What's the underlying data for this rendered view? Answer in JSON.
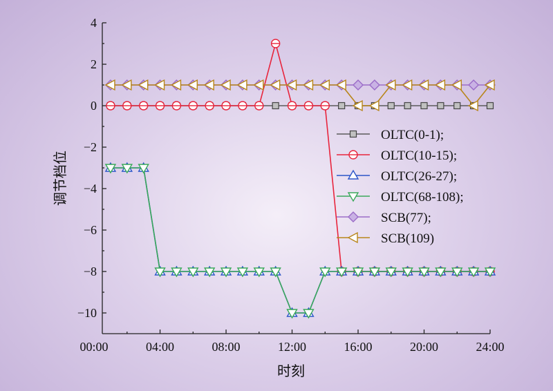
{
  "chart_data": {
    "type": "line",
    "xlabel": "时刻",
    "ylabel": "调节档位",
    "xlim": [
      0.5,
      24
    ],
    "ylim": [
      -11,
      4
    ],
    "x_ticks": [
      {
        "value": 0,
        "label": "00:00"
      },
      {
        "value": 4,
        "label": "04:00"
      },
      {
        "value": 8,
        "label": "08:00"
      },
      {
        "value": 12,
        "label": "12:00"
      },
      {
        "value": 16,
        "label": "16:00"
      },
      {
        "value": 20,
        "label": "20:00"
      },
      {
        "value": 24,
        "label": "24:00"
      }
    ],
    "y_ticks": [
      {
        "value": 4,
        "label": "4"
      },
      {
        "value": 2,
        "label": "2"
      },
      {
        "value": 0,
        "label": "0"
      },
      {
        "value": -2,
        "label": "−2"
      },
      {
        "value": -4,
        "label": "−4"
      },
      {
        "value": -6,
        "label": "−6"
      },
      {
        "value": -8,
        "label": "−8"
      },
      {
        "value": -10,
        "label": "−10"
      }
    ],
    "x": [
      1,
      2,
      3,
      4,
      5,
      6,
      7,
      8,
      9,
      10,
      11,
      12,
      13,
      14,
      15,
      16,
      17,
      18,
      19,
      20,
      21,
      22,
      23,
      24
    ],
    "legend_position": "right",
    "series": [
      {
        "name": "OLTC(0-1);",
        "color": "#5a5a5a",
        "marker": "square",
        "values": [
          0,
          0,
          0,
          0,
          0,
          0,
          0,
          0,
          0,
          0,
          0,
          0,
          0,
          0,
          0,
          0,
          0,
          0,
          0,
          0,
          0,
          0,
          0,
          0
        ]
      },
      {
        "name": "OLTC(10-15);",
        "color": "#e8243c",
        "marker": "circle",
        "values": [
          0,
          0,
          0,
          0,
          0,
          0,
          0,
          0,
          0,
          0,
          3,
          0,
          0,
          0,
          -8,
          -8,
          -8,
          -8,
          -8,
          -8,
          -8,
          -8,
          -8,
          -8
        ]
      },
      {
        "name": "OLTC(26-27);",
        "color": "#2b55c8",
        "marker": "triangle-up",
        "values": [
          -3,
          -3,
          -3,
          -8,
          -8,
          -8,
          -8,
          -8,
          -8,
          -8,
          -8,
          -10,
          -10,
          -8,
          -8,
          -8,
          -8,
          -8,
          -8,
          -8,
          -8,
          -8,
          -8,
          -8
        ]
      },
      {
        "name": "OLTC(68-108);",
        "color": "#3aa85a",
        "marker": "triangle-down",
        "values": [
          -3,
          -3,
          -3,
          -8,
          -8,
          -8,
          -8,
          -8,
          -8,
          -8,
          -8,
          -10,
          -10,
          -8,
          -8,
          -8,
          -8,
          -8,
          -8,
          -8,
          -8,
          -8,
          -8,
          -8
        ]
      },
      {
        "name": "SCB(77);",
        "color": "#9b6cc8",
        "marker": "diamond",
        "values": [
          1,
          1,
          1,
          1,
          1,
          1,
          1,
          1,
          1,
          1,
          1,
          1,
          1,
          1,
          1,
          1,
          1,
          1,
          1,
          1,
          1,
          1,
          1,
          1
        ]
      },
      {
        "name": "SCB(109)",
        "color": "#b8861a",
        "marker": "triangle-left",
        "values": [
          1,
          1,
          1,
          1,
          1,
          1,
          1,
          1,
          1,
          1,
          1,
          1,
          1,
          1,
          1,
          0,
          0,
          1,
          1,
          1,
          1,
          1,
          0,
          1
        ]
      }
    ]
  }
}
